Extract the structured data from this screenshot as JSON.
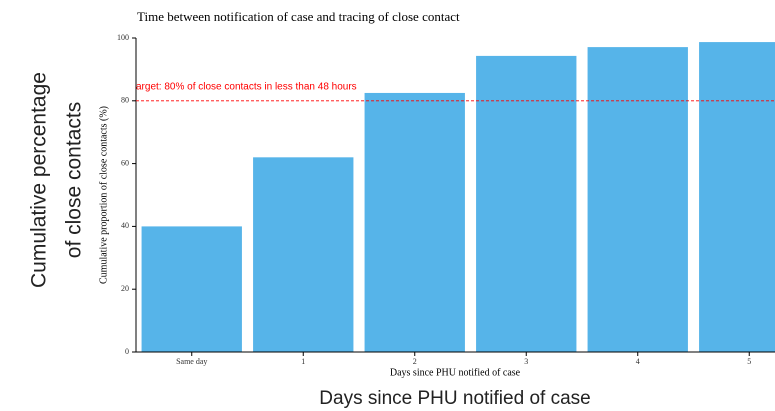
{
  "chart_data": {
    "type": "bar",
    "title": "Time between notification of case and tracing of close contact",
    "x_label": "Days since PHU notified of case",
    "y_label": "Cumulative proportion of close contacts (%)",
    "overlay_y_label": [
      "Cumulative percentage",
      "of close contacts"
    ],
    "overlay_x_label": "Days since PHU notified of case",
    "categories": [
      "Same day",
      "1",
      "2",
      "3",
      "4",
      "5"
    ],
    "values": [
      40,
      62,
      82.5,
      94.3,
      97.1,
      98.7
    ],
    "color": "#56b4e9",
    "ylim": [
      0,
      100
    ],
    "yticks": [
      0,
      20,
      40,
      60,
      80,
      100
    ],
    "grid": false,
    "reference_line": {
      "value": 80,
      "label": "arget: 80% of close contacts in less than 48 hours",
      "color": "#ff0000"
    }
  }
}
